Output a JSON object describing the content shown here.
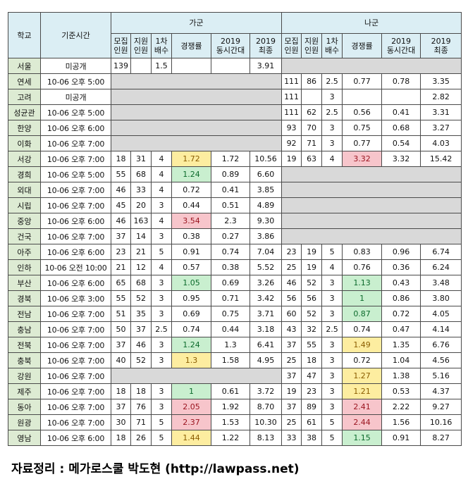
{
  "headers": {
    "school": "학교",
    "time": "기준시간",
    "group_ga": "가군",
    "group_na": "나군",
    "recruit": [
      "모집",
      "인원"
    ],
    "applicants": [
      "지원",
      "인원"
    ],
    "first_ratio": [
      "1차",
      "배수"
    ],
    "competition": "경쟁률",
    "c2019": [
      "2019",
      "동시간대"
    ],
    "final2019": [
      "2019",
      "최종"
    ]
  },
  "rows": [
    {
      "school": "서울",
      "time": "미공개",
      "ga": {
        "recruit": "139",
        "applicants": "",
        "ratio": "1.5",
        "rate": "",
        "rate_color": "",
        "same2019": "",
        "final2019": "3.91"
      },
      "na": null
    },
    {
      "school": "연세",
      "time": "10-06 오후 5:00",
      "ga": null,
      "na": {
        "recruit": "111",
        "applicants": "86",
        "ratio": "2.5",
        "rate": "0.77",
        "rate_color": "",
        "same2019": "0.78",
        "final2019": "3.35"
      }
    },
    {
      "school": "고려",
      "time": "미공개",
      "ga": null,
      "na": {
        "recruit": "111",
        "applicants": "",
        "ratio": "3",
        "rate": "",
        "rate_color": "",
        "same2019": "",
        "final2019": "2.82"
      }
    },
    {
      "school": "성균관",
      "time": "10-06 오후 5:00",
      "ga": null,
      "na": {
        "recruit": "111",
        "applicants": "62",
        "ratio": "2.5",
        "rate": "0.56",
        "rate_color": "",
        "same2019": "0.41",
        "final2019": "3.31"
      }
    },
    {
      "school": "한양",
      "time": "10-06 오후 6:00",
      "ga": null,
      "na": {
        "recruit": "93",
        "applicants": "70",
        "ratio": "3",
        "rate": "0.75",
        "rate_color": "",
        "same2019": "0.68",
        "final2019": "3.27"
      }
    },
    {
      "school": "이화",
      "time": "10-06 오후 7:00",
      "ga": null,
      "na": {
        "recruit": "92",
        "applicants": "71",
        "ratio": "3",
        "rate": "0.77",
        "rate_color": "",
        "same2019": "0.54",
        "final2019": "4.03"
      }
    },
    {
      "school": "서강",
      "time": "10-06 오후 7:00",
      "ga": {
        "recruit": "18",
        "applicants": "31",
        "ratio": "4",
        "rate": "1.72",
        "rate_color": "y",
        "same2019": "1.72",
        "final2019": "10.56"
      },
      "na": {
        "recruit": "19",
        "applicants": "63",
        "ratio": "4",
        "rate": "3.32",
        "rate_color": "r",
        "same2019": "3.32",
        "final2019": "15.42"
      }
    },
    {
      "school": "경희",
      "time": "10-06 오후 5:00",
      "ga": {
        "recruit": "55",
        "applicants": "68",
        "ratio": "4",
        "rate": "1.24",
        "rate_color": "g",
        "same2019": "0.89",
        "final2019": "6.60"
      },
      "na": null
    },
    {
      "school": "외대",
      "time": "10-06 오후 7:00",
      "ga": {
        "recruit": "46",
        "applicants": "33",
        "ratio": "4",
        "rate": "0.72",
        "rate_color": "",
        "same2019": "0.41",
        "final2019": "3.85"
      },
      "na": null
    },
    {
      "school": "시립",
      "time": "10-06 오후 7:00",
      "ga": {
        "recruit": "45",
        "applicants": "20",
        "ratio": "3",
        "rate": "0.44",
        "rate_color": "",
        "same2019": "0.51",
        "final2019": "4.89"
      },
      "na": null
    },
    {
      "school": "중앙",
      "time": "10-06 오후 6:00",
      "ga": {
        "recruit": "46",
        "applicants": "163",
        "ratio": "4",
        "rate": "3.54",
        "rate_color": "r",
        "same2019": "2.3",
        "final2019": "9.30"
      },
      "na": null
    },
    {
      "school": "건국",
      "time": "10-06 오후 7:00",
      "ga": {
        "recruit": "37",
        "applicants": "14",
        "ratio": "3",
        "rate": "0.38",
        "rate_color": "",
        "same2019": "0.27",
        "final2019": "3.86"
      },
      "na": null
    },
    {
      "school": "아주",
      "time": "10-06 오후 6:00",
      "ga": {
        "recruit": "23",
        "applicants": "21",
        "ratio": "5",
        "rate": "0.91",
        "rate_color": "",
        "same2019": "0.74",
        "final2019": "7.04"
      },
      "na": {
        "recruit": "23",
        "applicants": "19",
        "ratio": "5",
        "rate": "0.83",
        "rate_color": "",
        "same2019": "0.96",
        "final2019": "6.74"
      }
    },
    {
      "school": "인하",
      "time": "10-06 오전 10:00",
      "ga": {
        "recruit": "21",
        "applicants": "12",
        "ratio": "4",
        "rate": "0.57",
        "rate_color": "",
        "same2019": "0.38",
        "final2019": "5.52"
      },
      "na": {
        "recruit": "25",
        "applicants": "19",
        "ratio": "4",
        "rate": "0.76",
        "rate_color": "",
        "same2019": "0.36",
        "final2019": "6.24"
      }
    },
    {
      "school": "부산",
      "time": "10-06 오후 6:00",
      "ga": {
        "recruit": "65",
        "applicants": "68",
        "ratio": "3",
        "rate": "1.05",
        "rate_color": "g",
        "same2019": "0.69",
        "final2019": "3.26"
      },
      "na": {
        "recruit": "46",
        "applicants": "52",
        "ratio": "3",
        "rate": "1.13",
        "rate_color": "g",
        "same2019": "0.43",
        "final2019": "3.48"
      }
    },
    {
      "school": "경북",
      "time": "10-06 오후 3:00",
      "ga": {
        "recruit": "55",
        "applicants": "52",
        "ratio": "3",
        "rate": "0.95",
        "rate_color": "",
        "same2019": "0.71",
        "final2019": "3.42"
      },
      "na": {
        "recruit": "56",
        "applicants": "56",
        "ratio": "3",
        "rate": "1",
        "rate_color": "g",
        "same2019": "0.86",
        "final2019": "3.80"
      }
    },
    {
      "school": "전남",
      "time": "10-06 오후 7:00",
      "ga": {
        "recruit": "51",
        "applicants": "35",
        "ratio": "3",
        "rate": "0.69",
        "rate_color": "",
        "same2019": "0.75",
        "final2019": "3.71"
      },
      "na": {
        "recruit": "60",
        "applicants": "52",
        "ratio": "3",
        "rate": "0.87",
        "rate_color": "g",
        "same2019": "0.72",
        "final2019": "4.05"
      }
    },
    {
      "school": "충남",
      "time": "10-06 오후 7:00",
      "ga": {
        "recruit": "50",
        "applicants": "37",
        "ratio": "2.5",
        "rate": "0.74",
        "rate_color": "",
        "same2019": "0.44",
        "final2019": "3.18"
      },
      "na": {
        "recruit": "43",
        "applicants": "32",
        "ratio": "2.5",
        "rate": "0.74",
        "rate_color": "",
        "same2019": "0.47",
        "final2019": "4.14"
      }
    },
    {
      "school": "전북",
      "time": "10-06 오후 7:00",
      "ga": {
        "recruit": "37",
        "applicants": "46",
        "ratio": "3",
        "rate": "1.24",
        "rate_color": "g",
        "same2019": "1.3",
        "final2019": "6.41"
      },
      "na": {
        "recruit": "37",
        "applicants": "55",
        "ratio": "3",
        "rate": "1.49",
        "rate_color": "y",
        "same2019": "1.35",
        "final2019": "6.76"
      }
    },
    {
      "school": "충북",
      "time": "10-06 오후 7:00",
      "ga": {
        "recruit": "40",
        "applicants": "52",
        "ratio": "3",
        "rate": "1.3",
        "rate_color": "y",
        "same2019": "1.58",
        "final2019": "4.95"
      },
      "na": {
        "recruit": "25",
        "applicants": "18",
        "ratio": "3",
        "rate": "0.72",
        "rate_color": "",
        "same2019": "1.04",
        "final2019": "4.56"
      }
    },
    {
      "school": "강원",
      "time": "10-06 오후 7:00",
      "ga": null,
      "na": {
        "recruit": "37",
        "applicants": "47",
        "ratio": "3",
        "rate": "1.27",
        "rate_color": "y",
        "same2019": "1.38",
        "final2019": "5.16"
      }
    },
    {
      "school": "제주",
      "time": "10-06 오후 7:00",
      "ga": {
        "recruit": "18",
        "applicants": "18",
        "ratio": "3",
        "rate": "1",
        "rate_color": "g",
        "same2019": "0.61",
        "final2019": "3.72"
      },
      "na": {
        "recruit": "19",
        "applicants": "23",
        "ratio": "3",
        "rate": "1.21",
        "rate_color": "y",
        "same2019": "0.53",
        "final2019": "4.37"
      }
    },
    {
      "school": "동아",
      "time": "10-06 오후 7:00",
      "ga": {
        "recruit": "37",
        "applicants": "76",
        "ratio": "3",
        "rate": "2.05",
        "rate_color": "r",
        "same2019": "1.92",
        "final2019": "8.70"
      },
      "na": {
        "recruit": "37",
        "applicants": "89",
        "ratio": "3",
        "rate": "2.41",
        "rate_color": "r",
        "same2019": "2.22",
        "final2019": "9.27"
      }
    },
    {
      "school": "원광",
      "time": "10-06 오후 7:00",
      "ga": {
        "recruit": "30",
        "applicants": "71",
        "ratio": "5",
        "rate": "2.37",
        "rate_color": "r",
        "same2019": "1.53",
        "final2019": "10.30"
      },
      "na": {
        "recruit": "25",
        "applicants": "61",
        "ratio": "5",
        "rate": "2.44",
        "rate_color": "r",
        "same2019": "1.56",
        "final2019": "10.16"
      }
    },
    {
      "school": "영남",
      "time": "10-06 오후 6:00",
      "ga": {
        "recruit": "18",
        "applicants": "26",
        "ratio": "5",
        "rate": "1.44",
        "rate_color": "y",
        "same2019": "1.22",
        "final2019": "8.13"
      },
      "na": {
        "recruit": "33",
        "applicants": "38",
        "ratio": "5",
        "rate": "1.15",
        "rate_color": "g",
        "same2019": "0.91",
        "final2019": "8.27"
      }
    }
  ],
  "credit": "자료정리 : 메가로스쿨 박도현 (http://lawpass.net)"
}
